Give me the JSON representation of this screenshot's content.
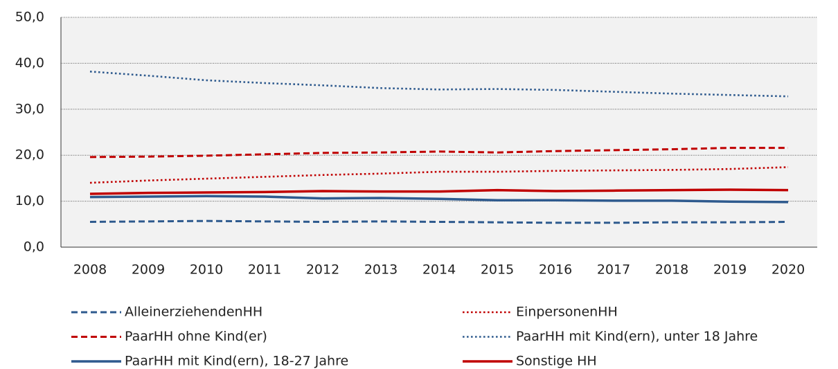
{
  "chart_data": {
    "type": "line",
    "categories": [
      "2008",
      "2009",
      "2010",
      "2011",
      "2012",
      "2013",
      "2014",
      "2015",
      "2016",
      "2017",
      "2018",
      "2019",
      "2020"
    ],
    "series": [
      {
        "name": "AlleinerziehendenHH",
        "color": "#2e5a8e",
        "dash": "dashed",
        "values": [
          5.5,
          5.6,
          5.7,
          5.6,
          5.5,
          5.6,
          5.5,
          5.4,
          5.3,
          5.3,
          5.4,
          5.4,
          5.5
        ]
      },
      {
        "name": "EinpersonenHH",
        "color": "#c00000",
        "dash": "dotted",
        "values": [
          14.0,
          14.5,
          14.9,
          15.3,
          15.7,
          16.0,
          16.4,
          16.4,
          16.6,
          16.7,
          16.8,
          17.0,
          17.4
        ]
      },
      {
        "name": "PaarHH ohne Kind(er)",
        "color": "#c00000",
        "dash": "dashed",
        "values": [
          19.6,
          19.7,
          19.9,
          20.2,
          20.5,
          20.6,
          20.8,
          20.6,
          20.9,
          21.1,
          21.3,
          21.6,
          21.6
        ]
      },
      {
        "name": "PaarHH mit Kind(ern), unter 18 Jahre",
        "color": "#2e5a8e",
        "dash": "dotted",
        "values": [
          38.2,
          37.3,
          36.3,
          35.7,
          35.2,
          34.6,
          34.3,
          34.4,
          34.2,
          33.8,
          33.4,
          33.1,
          32.8
        ]
      },
      {
        "name": "PaarHH mit Kind(ern), 18-27 Jahre",
        "color": "#2e5a8e",
        "dash": "solid",
        "values": [
          10.9,
          11.0,
          11.1,
          11.0,
          10.6,
          10.7,
          10.5,
          10.2,
          10.2,
          10.1,
          10.1,
          9.9,
          9.8
        ]
      },
      {
        "name": "Sonstige HH",
        "color": "#c00000",
        "dash": "solid",
        "values": [
          11.6,
          11.8,
          11.9,
          12.0,
          12.2,
          12.1,
          12.1,
          12.4,
          12.2,
          12.3,
          12.4,
          12.5,
          12.4
        ]
      }
    ],
    "ylim": [
      0,
      50
    ],
    "yticks": [
      {
        "value": 0,
        "label": "0,0"
      },
      {
        "value": 10,
        "label": "10,0"
      },
      {
        "value": 20,
        "label": "20,0"
      },
      {
        "value": 30,
        "label": "30,0"
      },
      {
        "value": 40,
        "label": "40,0"
      },
      {
        "value": 50,
        "label": "50,0"
      }
    ],
    "grid": true,
    "legend": "bottom"
  }
}
